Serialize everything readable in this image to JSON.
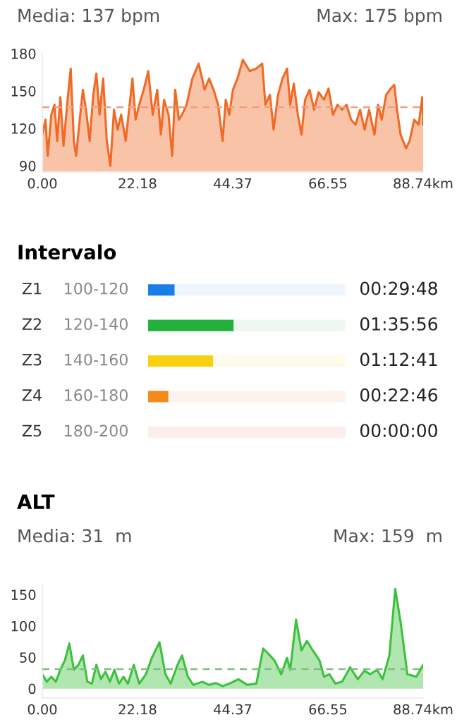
{
  "chart_data": [
    {
      "type": "area",
      "annotations": [
        "Media: 137 bpm",
        "Max: 175 bpm"
      ],
      "color": "#f06a25",
      "x": [
        0,
        0.74,
        1.26,
        2.1,
        2.84,
        3.47,
        4.2,
        4.94,
        5.78,
        6.62,
        7.35,
        7.88,
        8.72,
        9.45,
        10.19,
        11.03,
        11.87,
        12.6,
        13.34,
        14.18,
        15.02,
        15.86,
        16.7,
        17.54,
        18.38,
        19.43,
        21.0,
        21.74,
        22.58,
        23.63,
        24.68,
        25.73,
        26.78,
        27.62,
        28.36,
        29.41,
        30.25,
        30.96,
        31.82,
        32.56,
        33.61,
        34.97,
        36.44,
        37.81,
        38.86,
        39.91,
        40.96,
        42.01,
        42.74,
        43.58,
        44.42,
        45.47,
        46.73,
        48.31,
        49.88,
        51.25,
        51.98,
        53.04,
        53.88,
        54.93,
        55.98,
        57.03,
        57.76,
        58.6,
        59.55,
        60.39,
        61.23,
        62.28,
        63.33,
        64.38,
        65.64,
        66.69,
        67.74,
        68.79,
        69.84,
        70.89,
        71.94,
        72.99,
        74.04,
        75.09,
        76.14,
        77.4,
        78.24,
        79.08,
        80.13,
        81.18,
        82.02,
        82.65,
        83.49,
        84.75,
        85.59,
        86.64,
        87.69,
        88.53,
        88.74
      ],
      "values": [
        115,
        127,
        98,
        131,
        139,
        110,
        145,
        106,
        139,
        168,
        110,
        98,
        127,
        151,
        135,
        110,
        147,
        164,
        131,
        160,
        110,
        90,
        135,
        119,
        131,
        110,
        160,
        127,
        139,
        151,
        166,
        131,
        151,
        115,
        143,
        131,
        98,
        151,
        127,
        131,
        139,
        160,
        172,
        151,
        160,
        151,
        139,
        110,
        143,
        131,
        151,
        160,
        175,
        166,
        168,
        172,
        139,
        147,
        119,
        147,
        160,
        168,
        139,
        156,
        131,
        115,
        143,
        151,
        135,
        149,
        143,
        152,
        131,
        139,
        135,
        139,
        127,
        123,
        135,
        119,
        135,
        115,
        139,
        127,
        147,
        152,
        155,
        135,
        115,
        104,
        110,
        127,
        123,
        145,
        123
      ],
      "xlim": [
        0,
        88.74
      ],
      "ylim": [
        85,
        180
      ],
      "yticks": [
        90,
        120,
        150,
        180
      ],
      "xticks": [
        {
          "value": 0,
          "label": "0.00"
        },
        {
          "value": 22.18,
          "label": "22.18"
        },
        {
          "value": 44.37,
          "label": "44.37"
        },
        {
          "value": 66.55,
          "label": "66.55"
        },
        {
          "value": 88.74,
          "label": "88.74km"
        }
      ],
      "ref_lines": [
        {
          "axis": "y",
          "value": 137,
          "color": "#f0a080",
          "line_style": "dashed"
        }
      ]
    },
    {
      "type": "bar",
      "orientation": "horizontal",
      "title": "Intervalo",
      "categories": [
        "Z1",
        "Z2",
        "Z3",
        "Z4",
        "Z5"
      ],
      "y2_categories": [
        "100-120",
        "120-140",
        "140-160",
        "160-180",
        "180-200"
      ],
      "stacked": true,
      "series": [
        {
          "values": [
            29.8,
            95.93,
            72.68,
            22.77,
            0
          ],
          "colors": [
            "#1a7ee8",
            "#22b13a",
            "#f8d00e",
            "#f58a1c",
            "#f04a4a"
          ],
          "value_labels": [
            "00:29:48",
            "01:35:56",
            "01:12:41",
            "00:22:46",
            "00:00:00"
          ]
        },
        {
          "values": [
            191.4,
            125.27,
            148.52,
            198.43,
            221.2
          ],
          "colors": [
            "#eef5fd",
            "#eef8f0",
            "#fefbea",
            "#fdf3ec",
            "#fdeeee"
          ]
        }
      ],
      "xlim": [
        0,
        221.2
      ]
    },
    {
      "type": "area",
      "title": "ALT",
      "annotations": [
        "Media: 31  m",
        "Max: 159  m"
      ],
      "color": "#3cc13c",
      "x": [
        0,
        1.05,
        2.1,
        3.15,
        4.2,
        5.25,
        6.3,
        7.35,
        8.4,
        9.45,
        10.5,
        11.55,
        12.6,
        13.65,
        14.7,
        15.75,
        16.8,
        17.85,
        18.9,
        19.95,
        21.32,
        22.58,
        24.15,
        25.52,
        27.3,
        28.67,
        29.93,
        31.51,
        32.56,
        33.92,
        35.18,
        37.28,
        38.86,
        40.43,
        42.01,
        43.58,
        45.68,
        47.78,
        49.88,
        51.46,
        53.04,
        54.09,
        55.67,
        57.03,
        57.76,
        59.13,
        60.39,
        61.65,
        63.02,
        64.59,
        65.64,
        66.9,
        68.27,
        69.84,
        71.72,
        73.51,
        75.09,
        76.35,
        78.03,
        79.29,
        80.87,
        82.23,
        83.49,
        85.07,
        87.17,
        88.74
      ],
      "values": [
        23,
        11,
        19,
        11,
        30,
        45,
        72,
        30,
        38,
        53,
        11,
        8,
        38,
        15,
        27,
        11,
        30,
        8,
        19,
        8,
        38,
        8,
        23,
        49,
        74,
        23,
        8,
        38,
        53,
        19,
        6,
        11,
        6,
        9,
        4,
        8,
        15,
        6,
        8,
        64,
        53,
        45,
        23,
        49,
        30,
        110,
        61,
        76,
        61,
        45,
        19,
        23,
        8,
        11,
        34,
        15,
        29,
        23,
        30,
        15,
        53,
        159,
        106,
        23,
        19,
        38
      ],
      "xlim": [
        0,
        88.74
      ],
      "ylim": [
        -15,
        165
      ],
      "yticks": [
        0,
        50,
        100,
        150
      ],
      "xticks": [
        {
          "value": 0,
          "label": "0.00"
        },
        {
          "value": 22.18,
          "label": "22.18"
        },
        {
          "value": 44.37,
          "label": "44.37"
        },
        {
          "value": 66.55,
          "label": "66.55"
        },
        {
          "value": 88.74,
          "label": "88.74km"
        }
      ],
      "ref_lines": [
        {
          "axis": "y",
          "value": 31,
          "color": "#7fbf7f",
          "line_style": "dashed"
        }
      ]
    }
  ]
}
